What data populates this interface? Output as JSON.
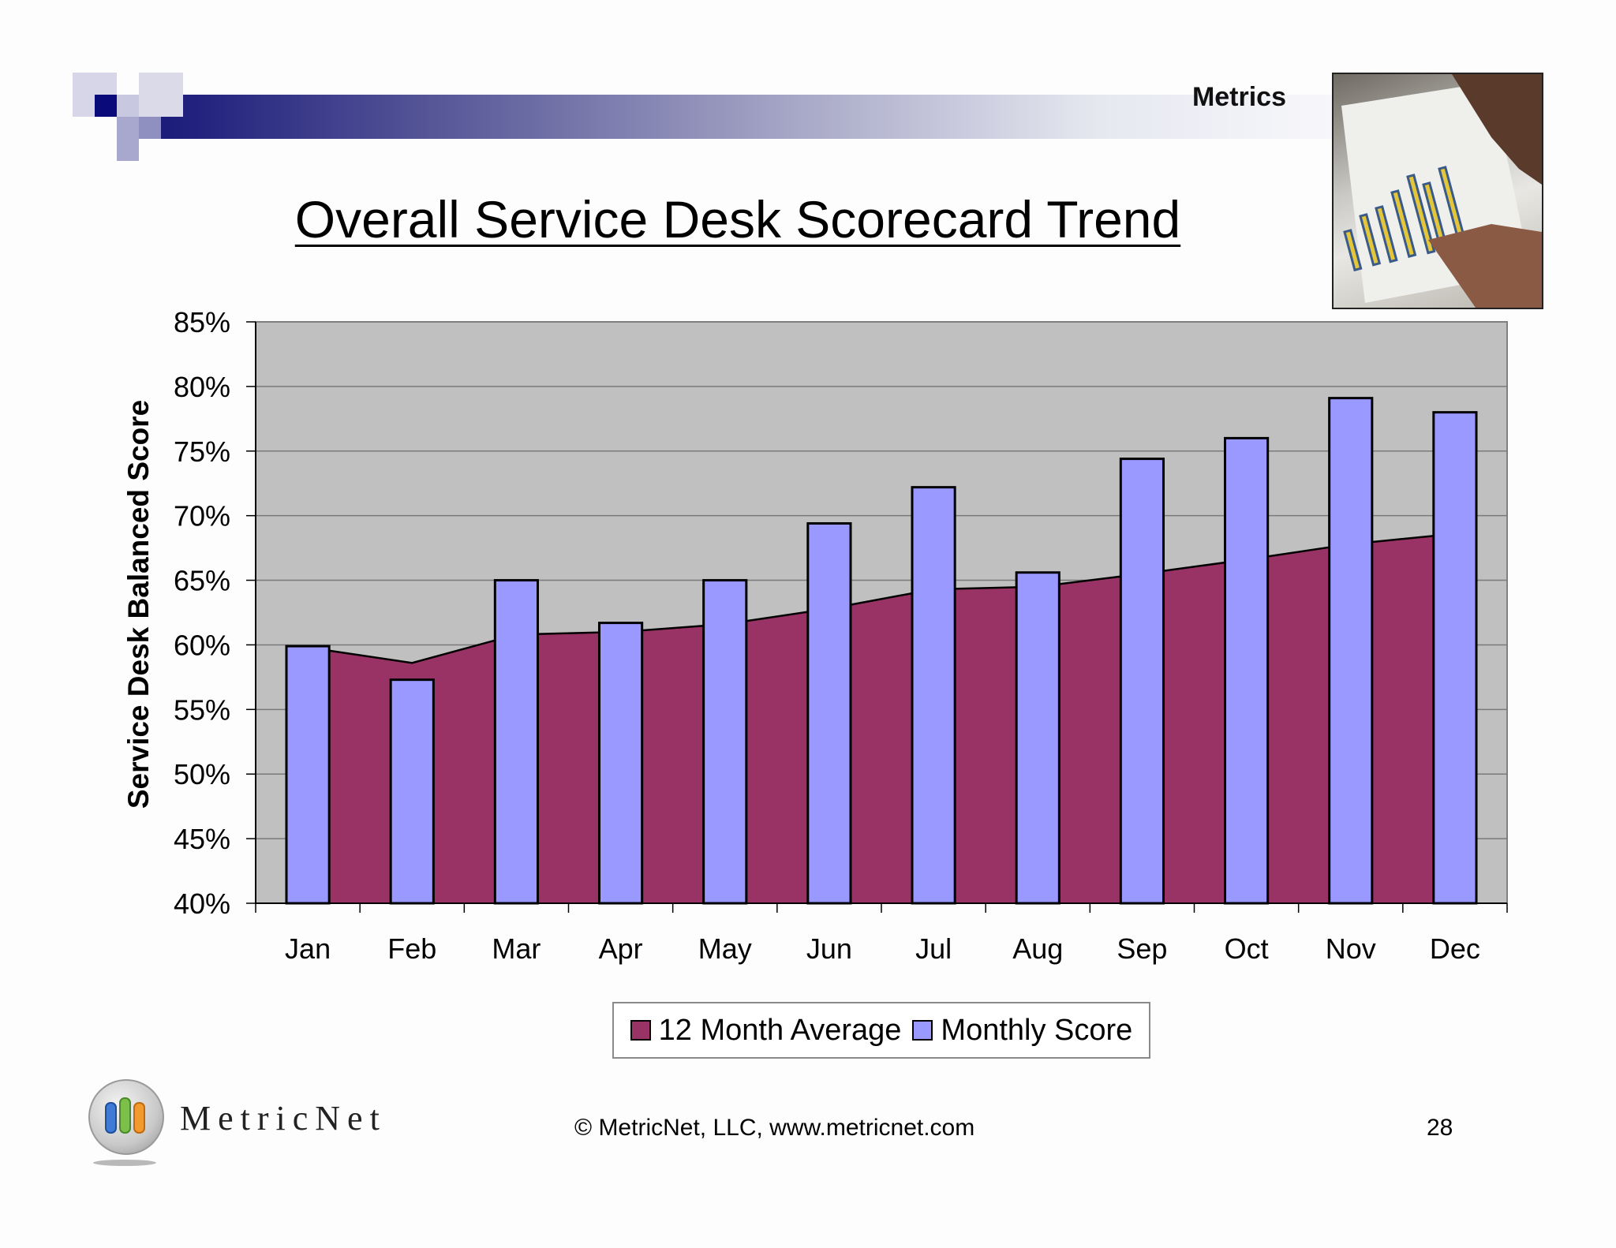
{
  "header": {
    "section_label": "Metrics",
    "title": "Overall Service Desk Scorecard Trend"
  },
  "colors": {
    "band_dark": "#1a1a7a",
    "plot_background": "#c0c0c0",
    "average_area": "#993366",
    "monthly_bar": "#9999ff"
  },
  "chart_data": {
    "type": "bar",
    "title": "",
    "xlabel": "",
    "ylabel": "Service Desk Balanced Score",
    "ylim": [
      40,
      85
    ],
    "yticks": [
      "40%",
      "45%",
      "50%",
      "55%",
      "60%",
      "65%",
      "70%",
      "75%",
      "80%",
      "85%"
    ],
    "categories": [
      "Jan",
      "Feb",
      "Mar",
      "Apr",
      "May",
      "Jun",
      "Jul",
      "Aug",
      "Sep",
      "Oct",
      "Nov",
      "Dec"
    ],
    "grid": true,
    "legend_position": "bottom",
    "series": [
      {
        "name": "12 Month Average",
        "type": "area",
        "color": "#993366",
        "values": [
          59.8,
          58.6,
          60.8,
          61.0,
          61.6,
          62.8,
          64.3,
          64.5,
          65.5,
          66.6,
          67.8,
          68.6
        ]
      },
      {
        "name": "Monthly Score",
        "type": "bar",
        "color": "#9999ff",
        "values": [
          59.9,
          57.3,
          65.0,
          61.7,
          65.0,
          69.4,
          72.2,
          65.6,
          74.4,
          76.0,
          79.1,
          78.0
        ]
      }
    ]
  },
  "footer": {
    "brand": "MetricNet",
    "copyright": "© MetricNet, LLC, www.metricnet.com",
    "page_number": "28"
  }
}
